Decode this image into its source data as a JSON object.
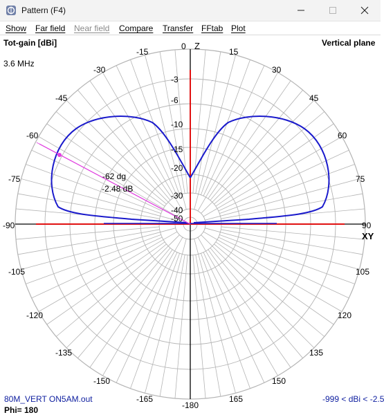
{
  "window": {
    "title": "Pattern   (F4)",
    "icon": "app-icon",
    "controls": [
      "minimize-icon",
      "maximize-icon",
      "close-icon"
    ]
  },
  "menu": [
    {
      "label": "Show",
      "enabled": true
    },
    {
      "label": "Far field",
      "enabled": true
    },
    {
      "label": "Near field",
      "enabled": false
    },
    {
      "label": "Compare",
      "enabled": true
    },
    {
      "label": "Transfer",
      "enabled": true
    },
    {
      "label": "FFtab",
      "enabled": true
    },
    {
      "label": "Plot",
      "enabled": true
    }
  ],
  "plot": {
    "gain_label": "Tot-gain [dBi]",
    "plane_label": "Vertical plane",
    "frequency": "3.6 MHz",
    "z_label": "Z",
    "xy_label": "XY",
    "file_name": "80M_VERT ON5AM.out",
    "phi": "Phi= 180",
    "range": "-999 < dBi < -2.5",
    "cursor": {
      "angle_label": "-62 dg",
      "gain_label": "-2.48 dB",
      "angle": -62
    },
    "angle_labels": [
      "0",
      "15",
      "30",
      "45",
      "60",
      "75",
      "90",
      "105",
      "120",
      "135",
      "150",
      "165",
      "-180",
      "-165",
      "-150",
      "-135",
      "-120",
      "-105",
      "-90",
      "-75",
      "-60",
      "-45",
      "-30",
      "-15"
    ],
    "ring_labels": [
      "-3",
      "-6",
      "-10",
      "-15",
      "-20",
      "-30",
      "-40",
      "-50"
    ],
    "colors": {
      "pattern": "#1a1acc",
      "axis": "#e01010",
      "grid": "#b4b4b4",
      "cursor": "#e040e0",
      "blue_text": "#1020a0"
    }
  }
}
